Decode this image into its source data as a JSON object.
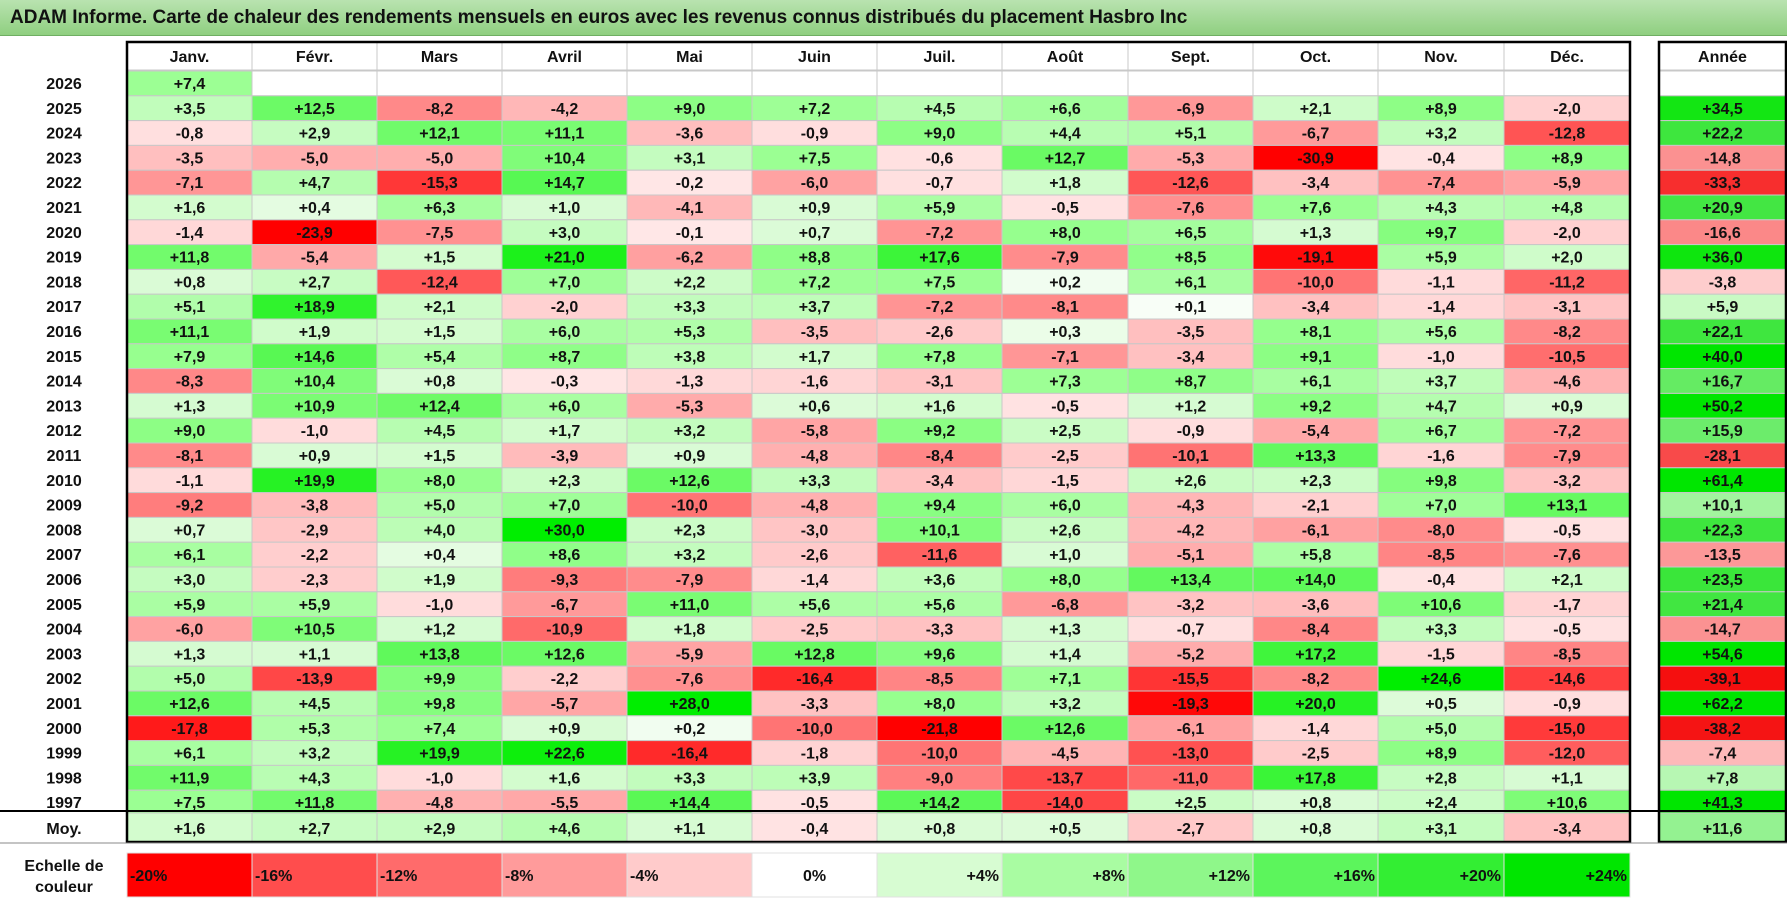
{
  "title": "ADAM Informe. Carte de chaleur des rendements mensuels en euros avec les revenus connus distribués du placement Hasbro Inc",
  "chart_data": {
    "type": "heatmap",
    "title": "ADAM Informe. Carte de chaleur des rendements mensuels en euros avec les revenus connus distribués du placement Hasbro Inc",
    "months": [
      "Janv.",
      "Févr.",
      "Mars",
      "Avril",
      "Mai",
      "Juin",
      "Juil.",
      "Août",
      "Sept.",
      "Oct.",
      "Nov.",
      "Déc."
    ],
    "annual_label": "Année",
    "average_label": "Moy.",
    "rows": [
      {
        "year": "2026",
        "values": [
          "+7,4",
          null,
          null,
          null,
          null,
          null,
          null,
          null,
          null,
          null,
          null,
          null
        ],
        "annual": null
      },
      {
        "year": "2025",
        "values": [
          "+3,5",
          "+12,5",
          "-8,2",
          "-4,2",
          "+9,0",
          "+7,2",
          "+4,5",
          "+6,6",
          "-6,9",
          "+2,1",
          "+8,9",
          "-2,0"
        ],
        "annual": "+34,5"
      },
      {
        "year": "2024",
        "values": [
          "-0,8",
          "+2,9",
          "+12,1",
          "+11,1",
          "-3,6",
          "-0,9",
          "+9,0",
          "+4,4",
          "+5,1",
          "-6,7",
          "+3,2",
          "-12,8"
        ],
        "annual": "+22,2"
      },
      {
        "year": "2023",
        "values": [
          "-3,5",
          "-5,0",
          "-5,0",
          "+10,4",
          "+3,1",
          "+7,5",
          "-0,6",
          "+12,7",
          "-5,3",
          "-30,9",
          "-0,4",
          "+8,9"
        ],
        "annual": "-14,8"
      },
      {
        "year": "2022",
        "values": [
          "-7,1",
          "+4,7",
          "-15,3",
          "+14,7",
          "-0,2",
          "-6,0",
          "-0,7",
          "+1,8",
          "-12,6",
          "-3,4",
          "-7,4",
          "-5,9"
        ],
        "annual": "-33,3"
      },
      {
        "year": "2021",
        "values": [
          "+1,6",
          "+0,4",
          "+6,3",
          "+1,0",
          "-4,1",
          "+0,9",
          "+5,9",
          "-0,5",
          "-7,6",
          "+7,6",
          "+4,3",
          "+4,8"
        ],
        "annual": "+20,9"
      },
      {
        "year": "2020",
        "values": [
          "-1,4",
          "-23,9",
          "-7,5",
          "+3,0",
          "-0,1",
          "+0,7",
          "-7,2",
          "+8,0",
          "+6,5",
          "+1,3",
          "+9,7",
          "-2,0"
        ],
        "annual": "-16,6"
      },
      {
        "year": "2019",
        "values": [
          "+11,8",
          "-5,4",
          "+1,5",
          "+21,0",
          "-6,2",
          "+8,8",
          "+17,6",
          "-7,9",
          "+8,5",
          "-19,1",
          "+5,9",
          "+2,0"
        ],
        "annual": "+36,0"
      },
      {
        "year": "2018",
        "values": [
          "+0,8",
          "+2,7",
          "-12,4",
          "+7,0",
          "+2,2",
          "+7,2",
          "+7,5",
          "+0,2",
          "+6,1",
          "-10,0",
          "-1,1",
          "-11,2"
        ],
        "annual": "-3,8"
      },
      {
        "year": "2017",
        "values": [
          "+5,1",
          "+18,9",
          "+2,1",
          "-2,0",
          "+3,3",
          "+3,7",
          "-7,2",
          "-8,1",
          "+0,1",
          "-3,4",
          "-1,4",
          "-3,1"
        ],
        "annual": "+5,9"
      },
      {
        "year": "2016",
        "values": [
          "+11,1",
          "+1,9",
          "+1,5",
          "+6,0",
          "+5,3",
          "-3,5",
          "-2,6",
          "+0,3",
          "-3,5",
          "+8,1",
          "+5,6",
          "-8,2"
        ],
        "annual": "+22,1"
      },
      {
        "year": "2015",
        "values": [
          "+7,9",
          "+14,6",
          "+5,4",
          "+8,7",
          "+3,8",
          "+1,7",
          "+7,8",
          "-7,1",
          "-3,4",
          "+9,1",
          "-1,0",
          "-10,5"
        ],
        "annual": "+40,0"
      },
      {
        "year": "2014",
        "values": [
          "-8,3",
          "+10,4",
          "+0,8",
          "-0,3",
          "-1,3",
          "-1,6",
          "-3,1",
          "+7,3",
          "+8,7",
          "+6,1",
          "+3,7",
          "-4,6"
        ],
        "annual": "+16,7"
      },
      {
        "year": "2013",
        "values": [
          "+1,3",
          "+10,9",
          "+12,4",
          "+6,0",
          "-5,3",
          "+0,6",
          "+1,6",
          "-0,5",
          "+1,2",
          "+9,2",
          "+4,7",
          "+0,9"
        ],
        "annual": "+50,2"
      },
      {
        "year": "2012",
        "values": [
          "+9,0",
          "-1,0",
          "+4,5",
          "+1,7",
          "+3,2",
          "-5,8",
          "+9,2",
          "+2,5",
          "-0,9",
          "-5,4",
          "+6,7",
          "-7,2"
        ],
        "annual": "+15,9"
      },
      {
        "year": "2011",
        "values": [
          "-8,1",
          "+0,9",
          "+1,5",
          "-3,9",
          "+0,9",
          "-4,8",
          "-8,4",
          "-2,5",
          "-10,1",
          "+13,3",
          "-1,6",
          "-7,9"
        ],
        "annual": "-28,1"
      },
      {
        "year": "2010",
        "values": [
          "-1,1",
          "+19,9",
          "+8,0",
          "+2,3",
          "+12,6",
          "+3,3",
          "-3,4",
          "-1,5",
          "+2,6",
          "+2,3",
          "+9,8",
          "-3,2"
        ],
        "annual": "+61,4"
      },
      {
        "year": "2009",
        "values": [
          "-9,2",
          "-3,8",
          "+5,0",
          "+7,0",
          "-10,0",
          "-4,8",
          "+9,4",
          "+6,0",
          "-4,3",
          "-2,1",
          "+7,0",
          "+13,1"
        ],
        "annual": "+10,1"
      },
      {
        "year": "2008",
        "values": [
          "+0,7",
          "-2,9",
          "+4,0",
          "+30,0",
          "+2,3",
          "-3,0",
          "+10,1",
          "+2,6",
          "-4,2",
          "-6,1",
          "-8,0",
          "-0,5"
        ],
        "annual": "+22,3"
      },
      {
        "year": "2007",
        "values": [
          "+6,1",
          "-2,2",
          "+0,4",
          "+8,6",
          "+3,2",
          "-2,6",
          "-11,6",
          "+1,0",
          "-5,1",
          "+5,8",
          "-8,5",
          "-7,6"
        ],
        "annual": "-13,5"
      },
      {
        "year": "2006",
        "values": [
          "+3,0",
          "-2,3",
          "+1,9",
          "-9,3",
          "-7,9",
          "-1,4",
          "+3,6",
          "+8,0",
          "+13,4",
          "+14,0",
          "-0,4",
          "+2,1"
        ],
        "annual": "+23,5"
      },
      {
        "year": "2005",
        "values": [
          "+5,9",
          "+5,9",
          "-1,0",
          "-6,7",
          "+11,0",
          "+5,6",
          "+5,6",
          "-6,8",
          "-3,2",
          "-3,6",
          "+10,6",
          "-1,7"
        ],
        "annual": "+21,4"
      },
      {
        "year": "2004",
        "values": [
          "-6,0",
          "+10,5",
          "+1,2",
          "-10,9",
          "+1,8",
          "-2,5",
          "-3,3",
          "+1,3",
          "-0,7",
          "-8,4",
          "+3,3",
          "-0,5"
        ],
        "annual": "-14,7"
      },
      {
        "year": "2003",
        "values": [
          "+1,3",
          "+1,1",
          "+13,8",
          "+12,6",
          "-5,9",
          "+12,8",
          "+9,6",
          "+1,4",
          "-5,2",
          "+17,2",
          "-1,5",
          "-8,5"
        ],
        "annual": "+54,6"
      },
      {
        "year": "2002",
        "values": [
          "+5,0",
          "-13,9",
          "+9,9",
          "-2,2",
          "-7,6",
          "-16,4",
          "-8,5",
          "+7,1",
          "-15,5",
          "-8,2",
          "+24,6",
          "-14,6"
        ],
        "annual": "-39,1"
      },
      {
        "year": "2001",
        "values": [
          "+12,6",
          "+4,5",
          "+9,8",
          "-5,7",
          "+28,0",
          "-3,3",
          "+8,0",
          "+3,2",
          "-19,3",
          "+20,0",
          "+0,5",
          "-0,9"
        ],
        "annual": "+62,2"
      },
      {
        "year": "2000",
        "values": [
          "-17,8",
          "+5,3",
          "+7,4",
          "+0,9",
          "+0,2",
          "-10,0",
          "-21,8",
          "+12,6",
          "-6,1",
          "-1,4",
          "+5,0",
          "-15,0"
        ],
        "annual": "-38,2"
      },
      {
        "year": "1999",
        "values": [
          "+6,1",
          "+3,2",
          "+19,9",
          "+22,6",
          "-16,4",
          "-1,8",
          "-10,0",
          "-4,5",
          "-13,0",
          "-2,5",
          "+8,9",
          "-12,0"
        ],
        "annual": "-7,4"
      },
      {
        "year": "1998",
        "values": [
          "+11,9",
          "+4,3",
          "-1,0",
          "+1,6",
          "+3,3",
          "+3,9",
          "-9,0",
          "-13,7",
          "-11,0",
          "+17,8",
          "+2,8",
          "+1,1"
        ],
        "annual": "+7,8"
      },
      {
        "year": "1997",
        "values": [
          "+7,5",
          "+11,8",
          "-4,8",
          "-5,5",
          "+14,4",
          "-0,5",
          "+14,2",
          "-14,0",
          "+2,5",
          "+0,8",
          "+2,4",
          "+10,6"
        ],
        "annual": "+41,3"
      }
    ],
    "average": {
      "values": [
        "+1,6",
        "+2,7",
        "+2,9",
        "+4,6",
        "+1,1",
        "-0,4",
        "+0,8",
        "+0,5",
        "-2,7",
        "+0,8",
        "+3,1",
        "-3,4"
      ],
      "annual": "+11,6"
    },
    "scale_label_1": "Echelle de",
    "scale_label_2": "couleur",
    "scale": [
      {
        "label": "-20%",
        "value": -20
      },
      {
        "label": "-16%",
        "value": -16
      },
      {
        "label": "-12%",
        "value": -12
      },
      {
        "label": "-8%",
        "value": -8
      },
      {
        "label": "-4%",
        "value": -4
      },
      {
        "label": "0%",
        "value": 0
      },
      {
        "label": "+4%",
        "value": 4
      },
      {
        "label": "+8%",
        "value": 8
      },
      {
        "label": "+12%",
        "value": 12
      },
      {
        "label": "+16%",
        "value": 16
      },
      {
        "label": "+20%",
        "value": 20
      },
      {
        "label": "+24%",
        "value": 24
      }
    ]
  }
}
